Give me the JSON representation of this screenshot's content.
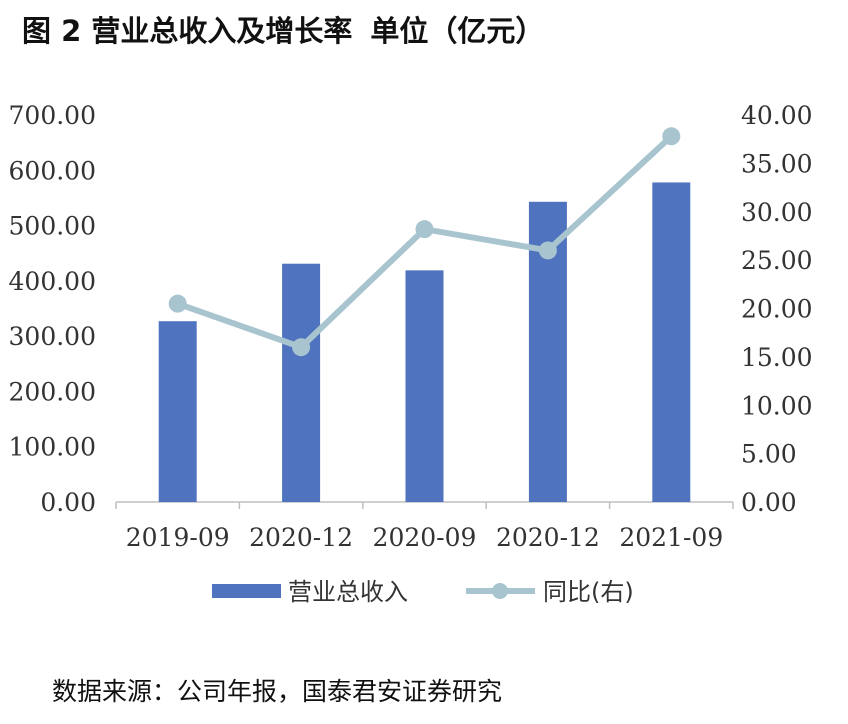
{
  "title": {
    "figure": "图 2 营业总收入及增长率",
    "unit": "单位（亿元）"
  },
  "source": "数据来源：公司年报，国泰君安证券研究",
  "colors": {
    "bar": "#4f73be",
    "line": "#a8c4cf"
  },
  "chart_data": {
    "type": "bar",
    "categories": [
      "2019-09",
      "2020-12",
      "2020-09",
      "2020-12",
      "2021-09"
    ],
    "series": [
      {
        "name": "营业总收入",
        "type": "bar",
        "axis": "left",
        "values": [
          327,
          431,
          419,
          543,
          578
        ]
      },
      {
        "name": "同比(右)",
        "type": "line",
        "axis": "right",
        "values": [
          20.5,
          16.0,
          28.2,
          26.0,
          37.8
        ]
      }
    ],
    "left_axis": {
      "ylim": [
        0,
        700
      ],
      "ticks": [
        "0.00",
        "100.00",
        "200.00",
        "300.00",
        "400.00",
        "500.00",
        "600.00",
        "700.00"
      ]
    },
    "right_axis": {
      "ylim": [
        0,
        40
      ],
      "ticks": [
        "0.00",
        "5.00",
        "10.00",
        "15.00",
        "20.00",
        "25.00",
        "30.00",
        "35.00",
        "40.00"
      ]
    },
    "grid": false,
    "legend_position": "bottom"
  }
}
